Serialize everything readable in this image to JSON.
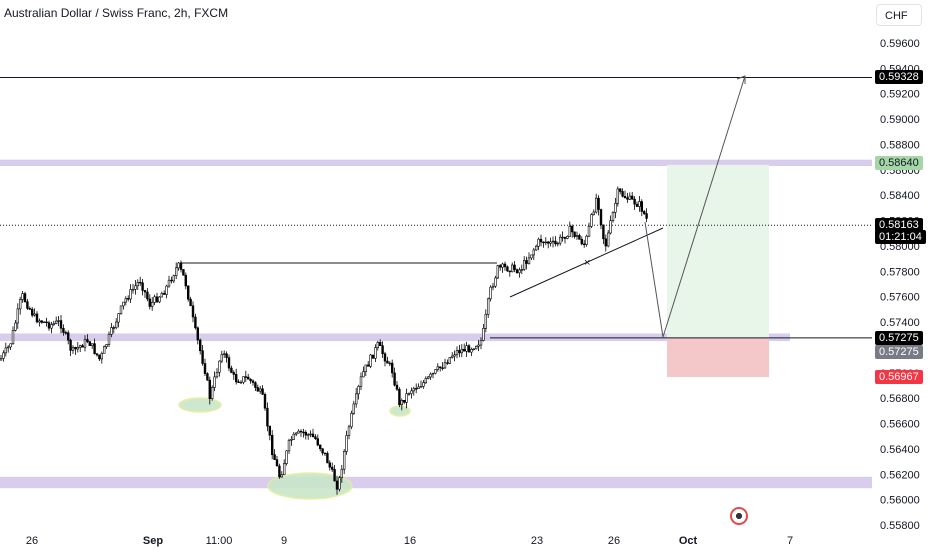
{
  "header": {
    "title": "Australian Dollar / Swiss Franc, 2h, FXCM",
    "currency": "CHF"
  },
  "chart_data": {
    "type": "candlestick",
    "symbol": "AUDCHF",
    "interval": "2h",
    "source": "FXCM",
    "y_ticks": [
      "0.59600",
      "0.59400",
      "0.59200",
      "0.59000",
      "0.58800",
      "0.58600",
      "0.58400",
      "0.58200",
      "0.58000",
      "0.57800",
      "0.57600",
      "0.57400",
      "0.57200",
      "0.57000",
      "0.56800",
      "0.56600",
      "0.56400",
      "0.56200",
      "0.56000",
      "0.55800"
    ],
    "x_ticks": [
      "26",
      "Sep",
      "11:00",
      "9",
      "16",
      "23",
      "26",
      "Oct",
      "7"
    ],
    "price_labels": [
      {
        "value": "0.59328",
        "bg": "#000000",
        "fg": "#ffffff"
      },
      {
        "value": "0.58640",
        "bg": "#a5d6a7",
        "fg": "#131722"
      },
      {
        "value": "0.58163",
        "bg": "#000000",
        "fg": "#ffffff"
      },
      {
        "value": "01:21:04",
        "bg": "#000000",
        "fg": "#ffffff"
      },
      {
        "value": "0.57275",
        "bg": "#000000",
        "fg": "#ffffff"
      },
      {
        "value": "0.57275",
        "bg": "#787b86",
        "fg": "#ffffff"
      },
      {
        "value": "0.56967",
        "bg": "#f23645",
        "fg": "#ffffff"
      }
    ],
    "ylim": [
      0.558,
      0.5965
    ],
    "zones": [
      {
        "name": "resistance",
        "from": 0.5863,
        "to": 0.5868,
        "color": "#d1c4e9"
      },
      {
        "name": "support-mid",
        "from": 0.5725,
        "to": 0.5731,
        "color": "#d1c4e9"
      },
      {
        "name": "support-low",
        "from": 0.5609,
        "to": 0.5618,
        "color": "#d1c4e9"
      }
    ],
    "levels": [
      0.59328,
      0.57275
    ],
    "last_price": 0.58163,
    "trade": {
      "entry": 0.57275,
      "target": 0.5864,
      "stop": 0.56967
    },
    "colors": {
      "candle": "#000000",
      "profit": "#e8f5e9",
      "loss": "#f4c7c8"
    }
  }
}
